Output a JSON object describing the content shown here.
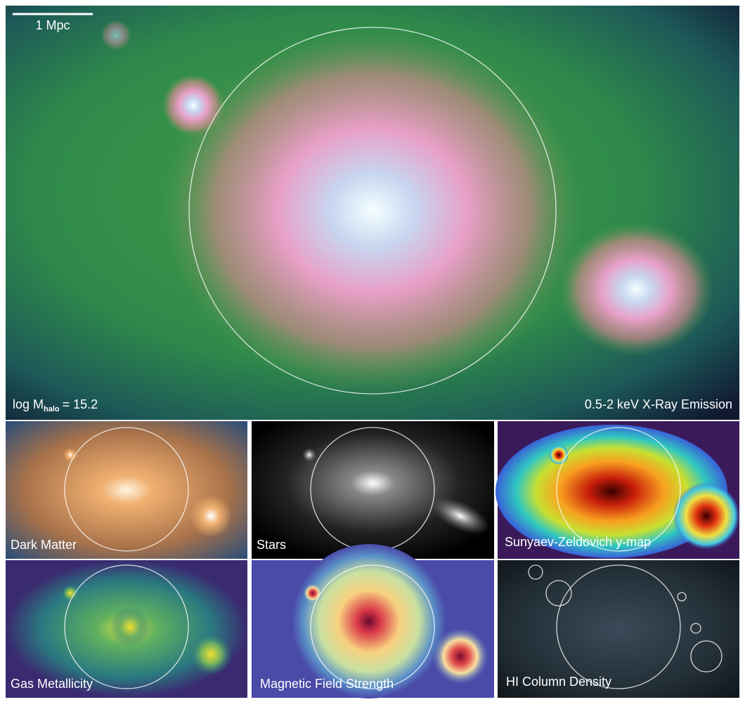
{
  "main_panel": {
    "scale_bar_label": "1 Mpc",
    "mass_label": {
      "prefix": "log M",
      "subscript": "halo",
      "suffix": "= 15.2"
    },
    "title": "0.5-2 keV X-Ray Emission"
  },
  "panels": [
    {
      "label": "Dark Matter"
    },
    {
      "label": "Stars"
    },
    {
      "label": "Sunyaev-Zeldovich y-map"
    },
    {
      "label": "Gas Metallicity"
    },
    {
      "label": "Magnetic Field Strength"
    },
    {
      "label": "HI Column Density"
    }
  ]
}
